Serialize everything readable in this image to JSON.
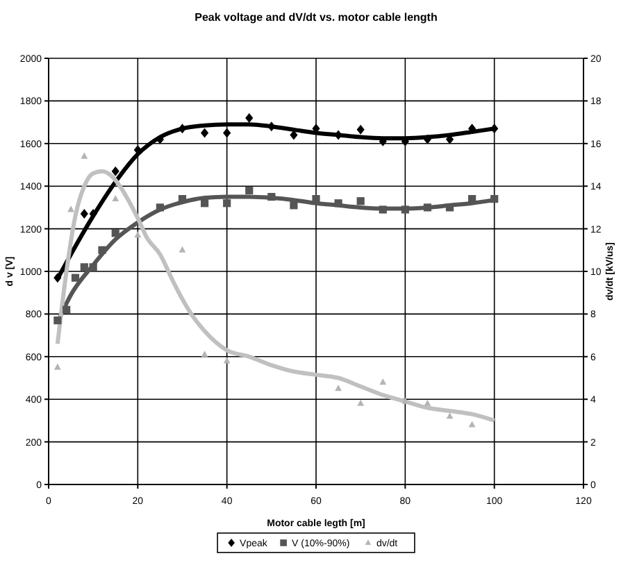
{
  "chart_data": {
    "type": "scatter",
    "title": "Peak voltage and dV/dt vs. motor cable length",
    "xlabel": "Motor cable legth [m]",
    "ylabel": "d v [V]",
    "y2label": "dv/dt [kV/us]",
    "xlim": [
      0,
      120
    ],
    "xticks": [
      0,
      20,
      40,
      60,
      80,
      100,
      120
    ],
    "ylim": [
      0,
      2000
    ],
    "yticks": [
      0,
      200,
      400,
      600,
      800,
      1000,
      1200,
      1400,
      1600,
      1800,
      2000
    ],
    "y2lim": [
      0,
      20
    ],
    "y2ticks": [
      0,
      2,
      4,
      6,
      8,
      10,
      12,
      14,
      16,
      18,
      20
    ],
    "grid": true,
    "legend": "bottom",
    "series": [
      {
        "name": "Vpeak",
        "marker": "diamond",
        "color": "#000000",
        "x": [
          2,
          8,
          10,
          15,
          20,
          25,
          30,
          35,
          40,
          45,
          50,
          55,
          60,
          65,
          70,
          75,
          80,
          85,
          90,
          95,
          100
        ],
        "values": [
          970,
          1270,
          1270,
          1470,
          1570,
          1620,
          1670,
          1650,
          1650,
          1720,
          1680,
          1640,
          1670,
          1640,
          1665,
          1610,
          1610,
          1620,
          1620,
          1670,
          1670
        ]
      },
      {
        "name": "V (10%-90%)",
        "marker": "square",
        "color": "#555555",
        "x": [
          2,
          4,
          6,
          8,
          10,
          12,
          15,
          25,
          30,
          35,
          40,
          45,
          50,
          55,
          60,
          65,
          70,
          75,
          80,
          85,
          90,
          95,
          100
        ],
        "values": [
          770,
          820,
          970,
          1020,
          1020,
          1100,
          1180,
          1300,
          1340,
          1320,
          1320,
          1380,
          1350,
          1310,
          1340,
          1320,
          1330,
          1290,
          1290,
          1300,
          1300,
          1340,
          1340
        ]
      },
      {
        "name": "dv/dt",
        "marker": "triangle",
        "color": "#b4b4b4",
        "axis": "y2",
        "x": [
          2,
          5,
          8,
          15,
          20,
          30,
          35,
          40,
          65,
          70,
          75,
          80,
          85,
          90,
          95
        ],
        "values": [
          5.5,
          12.9,
          15.4,
          13.4,
          11.7,
          11.0,
          6.1,
          5.8,
          4.5,
          3.8,
          4.8,
          3.9,
          3.8,
          3.2,
          2.8
        ]
      },
      {
        "type": "line",
        "marker": "none",
        "color": "#000000",
        "x": [
          2,
          5,
          10,
          15,
          20,
          25,
          30,
          35,
          40,
          45,
          50,
          55,
          60,
          65,
          70,
          75,
          80,
          85,
          90,
          95,
          100
        ],
        "values": [
          965,
          1080,
          1260,
          1420,
          1550,
          1630,
          1670,
          1685,
          1690,
          1690,
          1680,
          1665,
          1650,
          1640,
          1630,
          1625,
          1625,
          1630,
          1640,
          1655,
          1670
        ]
      },
      {
        "type": "line",
        "marker": "none",
        "color": "#555555",
        "x": [
          2,
          5,
          10,
          15,
          20,
          25,
          30,
          35,
          40,
          45,
          50,
          55,
          60,
          65,
          70,
          75,
          80,
          85,
          90,
          95,
          100
        ],
        "values": [
          760,
          890,
          1030,
          1150,
          1230,
          1290,
          1325,
          1345,
          1350,
          1350,
          1345,
          1335,
          1320,
          1310,
          1300,
          1295,
          1295,
          1300,
          1310,
          1320,
          1335
        ]
      },
      {
        "type": "line",
        "marker": "none",
        "color": "#c0c0c0",
        "axis": "y2",
        "x": [
          2,
          4,
          6,
          8,
          10,
          12,
          14,
          16,
          18,
          20,
          22,
          25,
          28,
          30,
          32,
          35,
          40,
          45,
          50,
          55,
          60,
          65,
          70,
          75,
          80,
          85,
          90,
          95,
          100
        ],
        "values": [
          6.6,
          10,
          12.6,
          14,
          14.6,
          14.7,
          14.5,
          14,
          13.3,
          12.5,
          11.6,
          10.8,
          9.5,
          8.7,
          8,
          7.2,
          6.3,
          6,
          5.6,
          5.3,
          5.15,
          5,
          4.6,
          4.2,
          3.9,
          3.6,
          3.45,
          3.3,
          3
        ]
      }
    ]
  }
}
